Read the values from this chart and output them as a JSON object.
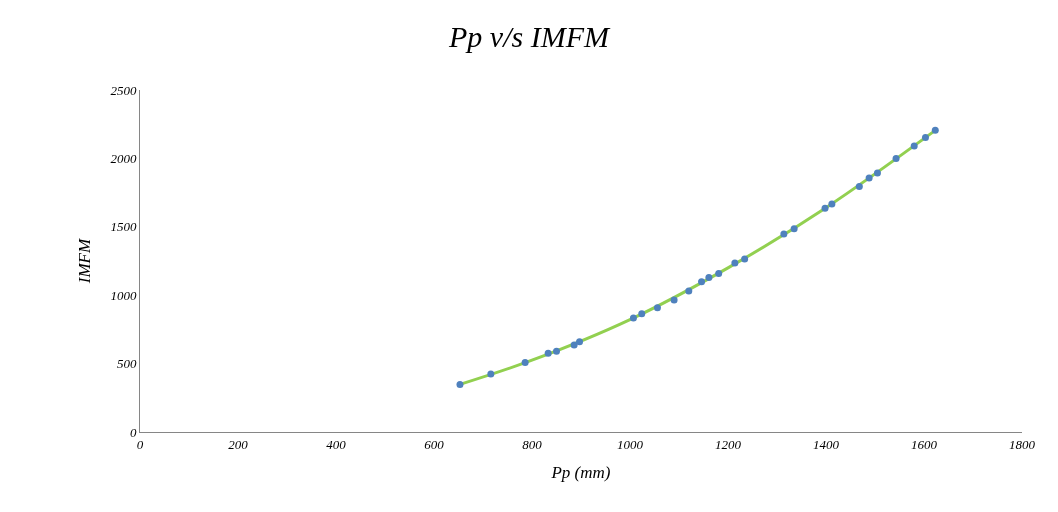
{
  "chart_data": {
    "type": "scatter",
    "title": "Pp v/s IMFM",
    "xlabel": "Pp (mm)",
    "ylabel": "IMFM",
    "xlim": [
      0,
      1800
    ],
    "xticks": [
      0,
      200,
      400,
      600,
      800,
      1000,
      1200,
      1400,
      1600,
      1800
    ],
    "ylim": [
      0,
      2500
    ],
    "yticks": [
      0,
      500,
      1000,
      1500,
      2000,
      2500
    ],
    "marker": "circle",
    "series": [
      {
        "color": "#4f81bd",
        "x": [
          653,
          716,
          786,
          833,
          850,
          886,
          897,
          1007,
          1024,
          1056,
          1090,
          1120,
          1146,
          1161,
          1181,
          1214,
          1234,
          1314,
          1335,
          1398,
          1412,
          1468,
          1488,
          1505,
          1543,
          1580,
          1603,
          1623
        ],
        "values": [
          348,
          424,
          508,
          576,
          591,
          636,
          659,
          833,
          864,
          909,
          965,
          1030,
          1098,
          1129,
          1159,
          1235,
          1265,
          1447,
          1485,
          1636,
          1667,
          1795,
          1856,
          1894,
          2000,
          2091,
          2152,
          2205
        ]
      },
      {
        "type": "line",
        "color": "#92d050",
        "marker": "none",
        "x": [
          653,
          800,
          1000,
          1200,
          1400,
          1623
        ],
        "values": [
          348,
          525,
          822,
          1200,
          1640,
          2205
        ]
      }
    ]
  }
}
